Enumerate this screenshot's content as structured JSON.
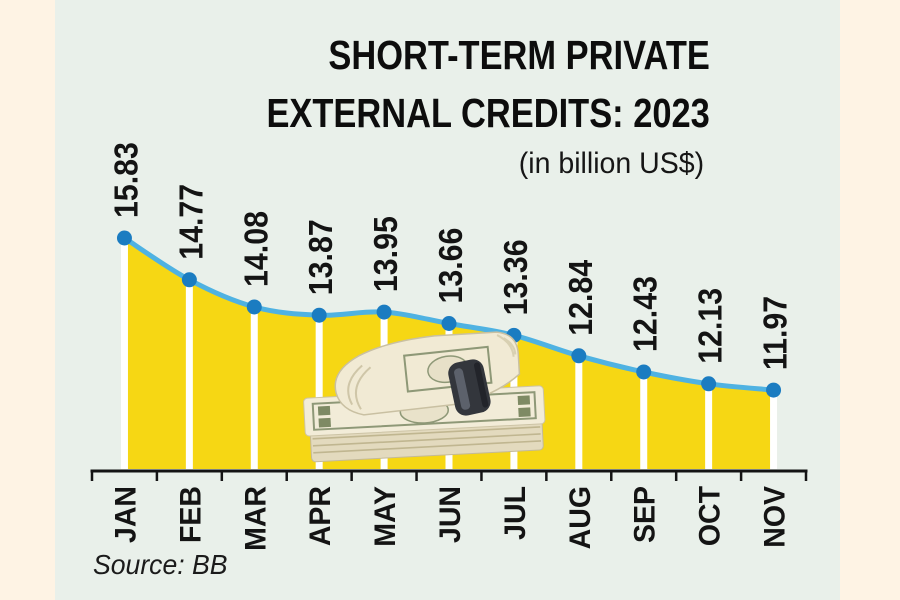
{
  "title": {
    "line1": "SHORT-TERM PRIVATE",
    "line2": "EXTERNAL CREDITS: 2023",
    "subtitle": "(in billion US$)"
  },
  "source": {
    "label": "Source: BB"
  },
  "decoration": {
    "name": "dollar-bills-stack-with-money-clip"
  },
  "chart_data": {
    "type": "area",
    "categories": [
      "JAN",
      "FEB",
      "MAR",
      "APR",
      "MAY",
      "JUN",
      "JUL",
      "AUG",
      "SEP",
      "OCT",
      "NOV"
    ],
    "values": [
      15.83,
      14.77,
      14.08,
      13.87,
      13.95,
      13.66,
      13.36,
      12.84,
      12.43,
      12.13,
      11.97
    ],
    "title": "SHORT-TERM PRIVATE EXTERNAL CREDITS: 2023",
    "xlabel": "",
    "ylabel": "(in billion US$)",
    "ylim": [
      9.95,
      16.2
    ],
    "grid": false,
    "legend": "none",
    "value_labels_rotation": -90,
    "month_labels_rotation": -90,
    "colors": {
      "area": "#f6d714",
      "drop_line": "#ffffff",
      "line": "#4fb2e2",
      "dot": "#1b7cc1",
      "axis": "#141414",
      "label": "#141414",
      "panel_bg": "#e9f0ea",
      "margin_bg": "#fef3e4"
    }
  }
}
